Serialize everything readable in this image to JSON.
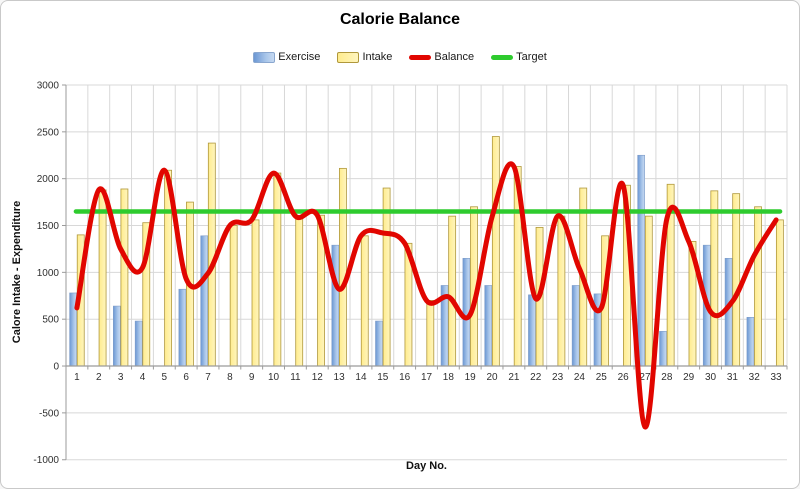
{
  "window": {
    "background": "#ffffff",
    "border_color": "#c9c9c9"
  },
  "chart": {
    "title": "Calorie Balance",
    "x_axis_title": "Day No.",
    "y_axis_title": "Calore Intake - Expenditure",
    "legend": [
      {
        "label": "Exercise",
        "swatch": "bar-blue-swatch",
        "color": "#7fa5d8"
      },
      {
        "label": "Intake",
        "swatch": "bar-yellow-swatch",
        "color": "#fff0a0"
      },
      {
        "label": "Balance",
        "swatch": "red-line-swatch",
        "color": "#e10600"
      },
      {
        "label": "Target",
        "swatch": "green-line-swatch",
        "color": "#2ecb2e"
      }
    ]
  },
  "chart_data": {
    "type": "bar",
    "subtype": "combo-bar-line",
    "title": "Calorie Balance",
    "xlabel": "Day No.",
    "ylabel": "Calore Intake - Expenditure",
    "ylim": [
      -1000,
      3000
    ],
    "ytick_step": 500,
    "y_ticks": [
      3000,
      2500,
      2000,
      1500,
      1000,
      500,
      0,
      -500,
      -1000
    ],
    "grid": true,
    "legend_position": "top",
    "categories": [
      1,
      2,
      3,
      4,
      5,
      6,
      7,
      8,
      9,
      10,
      11,
      12,
      13,
      14,
      15,
      16,
      17,
      18,
      19,
      20,
      21,
      22,
      23,
      24,
      25,
      26,
      27,
      28,
      29,
      30,
      31,
      32,
      33
    ],
    "series": [
      {
        "name": "Exercise",
        "type": "bar",
        "color": "#6b97d3",
        "values": [
          780,
          0,
          640,
          480,
          0,
          820,
          1390,
          0,
          0,
          0,
          0,
          0,
          1290,
          0,
          480,
          0,
          0,
          860,
          1150,
          860,
          0,
          760,
          0,
          860,
          770,
          0,
          2250,
          370,
          0,
          1290,
          1150,
          520,
          0
        ]
      },
      {
        "name": "Intake",
        "type": "bar",
        "color": "#fff0a0",
        "values": [
          1400,
          1880,
          1890,
          1530,
          2090,
          1750,
          2380,
          1500,
          1560,
          2060,
          1600,
          1610,
          2110,
          1390,
          1900,
          1310,
          700,
          1600,
          1700,
          2450,
          2130,
          1480,
          1600,
          1900,
          1390,
          1930,
          1600,
          1940,
          1330,
          1870,
          1840,
          1700,
          1560
        ]
      },
      {
        "name": "Balance",
        "type": "line",
        "smooth": true,
        "color": "#e10600",
        "values": [
          620,
          1880,
          1250,
          1050,
          2090,
          930,
          990,
          1500,
          1560,
          2060,
          1600,
          1610,
          820,
          1390,
          1420,
          1310,
          700,
          740,
          550,
          1590,
          2130,
          720,
          1600,
          1040,
          620,
          1930,
          -650,
          1570,
          1330,
          580,
          690,
          1180,
          1560
        ]
      },
      {
        "name": "Target",
        "type": "line",
        "smooth": false,
        "color": "#2ecb2e",
        "value": 1650
      }
    ]
  }
}
